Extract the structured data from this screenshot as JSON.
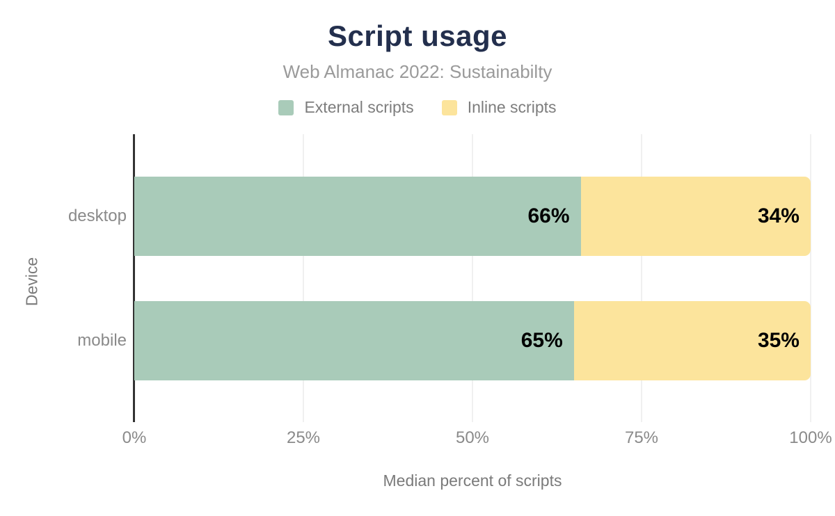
{
  "chart_data": {
    "type": "bar",
    "orientation": "horizontal",
    "stacked": true,
    "title": "Script usage",
    "subtitle": "Web Almanac 2022: Sustainabilty",
    "xlabel": "Median percent of scripts",
    "ylabel": "Device",
    "categories": [
      "desktop",
      "mobile"
    ],
    "series": [
      {
        "name": "External scripts",
        "color": "#a9cbb9",
        "values": [
          66,
          65
        ]
      },
      {
        "name": "Inline scripts",
        "color": "#fce49c",
        "values": [
          34,
          35
        ]
      }
    ],
    "data_labels": [
      [
        "66%",
        "34%"
      ],
      [
        "65%",
        "35%"
      ]
    ],
    "xticks": [
      "0%",
      "25%",
      "50%",
      "75%",
      "100%"
    ],
    "xtick_values": [
      0,
      25,
      50,
      75,
      100
    ],
    "xlim": [
      0,
      100
    ],
    "legend_position": "top",
    "grid": "vertical"
  },
  "style": {
    "title_color": "#232f4d",
    "subtitle_color": "#9a9a9a",
    "legend_text_color": "#7d7d7d",
    "tick_label_color": "#8a8a8a",
    "axis_title_color": "#7a7a7a",
    "data_label_color": "#000000",
    "axis_line_color": "#333333",
    "gridline_color": "#f0f0f0",
    "background": "#ffffff"
  }
}
